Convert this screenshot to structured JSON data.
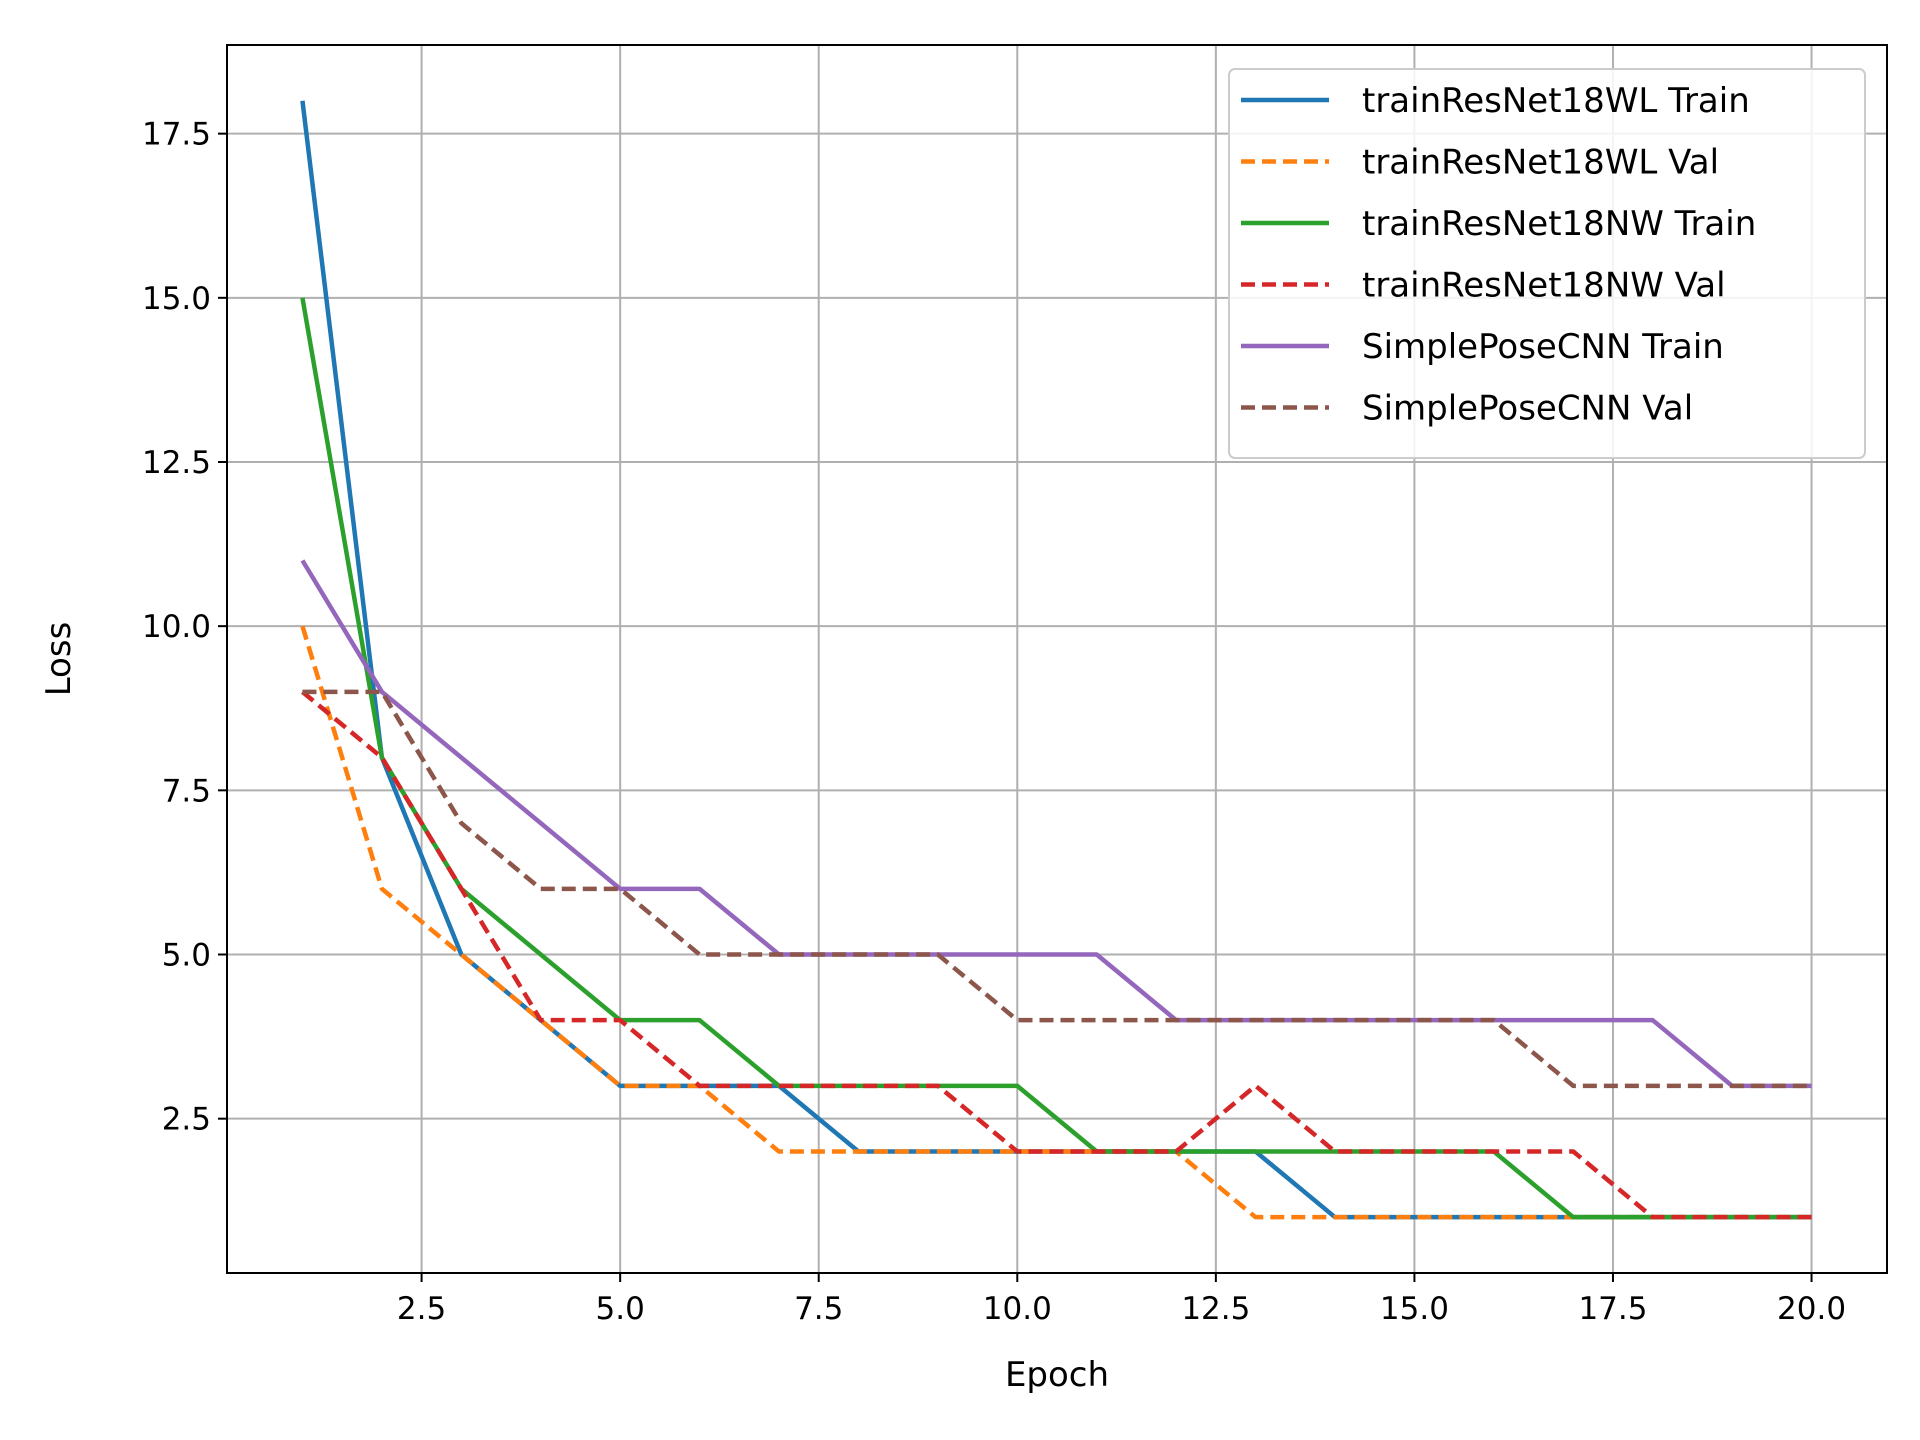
{
  "chart_data": {
    "type": "line",
    "xlabel": "Epoch",
    "ylabel": "Loss",
    "xlim": [
      0.05,
      20.95
    ],
    "ylim": [
      0.15,
      18.85
    ],
    "xticks": [
      2.5,
      5.0,
      7.5,
      10.0,
      12.5,
      15.0,
      17.5,
      20.0
    ],
    "yticks": [
      2.5,
      5.0,
      7.5,
      10.0,
      12.5,
      15.0,
      17.5
    ],
    "xtick_labels": [
      "2.5",
      "5.0",
      "7.5",
      "10.0",
      "12.5",
      "15.0",
      "17.5",
      "20.0"
    ],
    "ytick_labels": [
      "2.5",
      "5.0",
      "7.5",
      "10.0",
      "12.5",
      "15.0",
      "17.5"
    ],
    "grid": true,
    "legend_position": "top-right",
    "x": [
      1,
      2,
      3,
      4,
      5,
      6,
      7,
      8,
      9,
      10,
      11,
      12,
      13,
      14,
      15,
      16,
      17,
      18,
      19,
      20
    ],
    "series": [
      {
        "name": "trainResNet18WL Train",
        "color": "#1f77b4",
        "dash": "solid",
        "values": [
          18,
          8,
          5,
          4,
          3,
          3,
          3,
          2,
          2,
          2,
          2,
          2,
          2,
          1,
          1,
          1,
          1,
          1,
          1,
          1
        ]
      },
      {
        "name": "trainResNet18WL Val",
        "color": "#ff7f0e",
        "dash": "dashed",
        "values": [
          10,
          6,
          5,
          4,
          3,
          3,
          2,
          2,
          2,
          2,
          2,
          2,
          1,
          1,
          1,
          1,
          1,
          1,
          1,
          1
        ]
      },
      {
        "name": "trainResNet18NW Train",
        "color": "#2ca02c",
        "dash": "solid",
        "values": [
          15,
          8,
          6,
          5,
          4,
          4,
          3,
          3,
          3,
          3,
          2,
          2,
          2,
          2,
          2,
          2,
          1,
          1,
          1,
          1
        ]
      },
      {
        "name": "trainResNet18NW Val",
        "color": "#d62728",
        "dash": "dashed",
        "values": [
          9,
          8,
          6,
          4,
          4,
          3,
          3,
          3,
          3,
          2,
          2,
          2,
          3,
          2,
          2,
          2,
          2,
          1,
          1,
          1
        ]
      },
      {
        "name": "SimplePoseCNN Train",
        "color": "#9467bd",
        "dash": "solid",
        "values": [
          11,
          9,
          8,
          7,
          6,
          6,
          5,
          5,
          5,
          5,
          5,
          4,
          4,
          4,
          4,
          4,
          4,
          4,
          3,
          3
        ]
      },
      {
        "name": "SimplePoseCNN Val",
        "color": "#8c564b",
        "dash": "dashed",
        "values": [
          9,
          9,
          7,
          6,
          6,
          5,
          5,
          5,
          5,
          4,
          4,
          4,
          4,
          4,
          4,
          4,
          3,
          3,
          3,
          3
        ]
      }
    ]
  }
}
